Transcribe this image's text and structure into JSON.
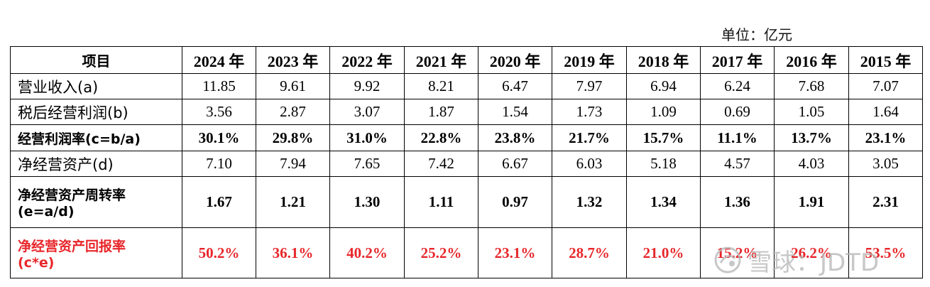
{
  "unit_label": "单位：亿元",
  "table": {
    "header": [
      "项目",
      "2024 年",
      "2023 年",
      "2022 年",
      "2021 年",
      "2020 年",
      "2019 年",
      "2018 年",
      "2017 年",
      "2016 年",
      "2015 年"
    ],
    "rows": [
      {
        "label": "营业收入(a)",
        "values": [
          "11.85",
          "9.61",
          "9.92",
          "8.21",
          "6.47",
          "7.97",
          "6.94",
          "6.24",
          "7.68",
          "7.07"
        ]
      },
      {
        "label": "税后经营利润(b)",
        "values": [
          "3.56",
          "2.87",
          "3.07",
          "1.87",
          "1.54",
          "1.73",
          "1.09",
          "0.69",
          "1.05",
          "1.64"
        ]
      },
      {
        "label": "经营利润率(c=b/a)",
        "values": [
          "30.1%",
          "29.8%",
          "31.0%",
          "22.8%",
          "23.8%",
          "21.7%",
          "15.7%",
          "11.1%",
          "13.7%",
          "23.1%"
        ]
      },
      {
        "label": "净经营资产(d)",
        "values": [
          "7.10",
          "7.94",
          "7.65",
          "7.42",
          "6.67",
          "6.03",
          "5.18",
          "4.57",
          "4.03",
          "3.05"
        ]
      },
      {
        "label_line1": "净经营资产周转率",
        "label_line2": "(e=a/d)",
        "values": [
          "1.67",
          "1.21",
          "1.30",
          "1.11",
          "0.97",
          "1.32",
          "1.34",
          "1.36",
          "1.91",
          "2.31"
        ]
      },
      {
        "label_line1": "净经营资产回报率",
        "label_line2": "(c*e)",
        "values": [
          "50.2%",
          "36.1%",
          "40.2%",
          "25.2%",
          "23.1%",
          "28.7%",
          "21.0%",
          "15.2%",
          "26.2%",
          "53.5%"
        ]
      }
    ]
  },
  "watermark": {
    "text": "雪球：JDTD",
    "icon": "snowball-logo-icon"
  }
}
